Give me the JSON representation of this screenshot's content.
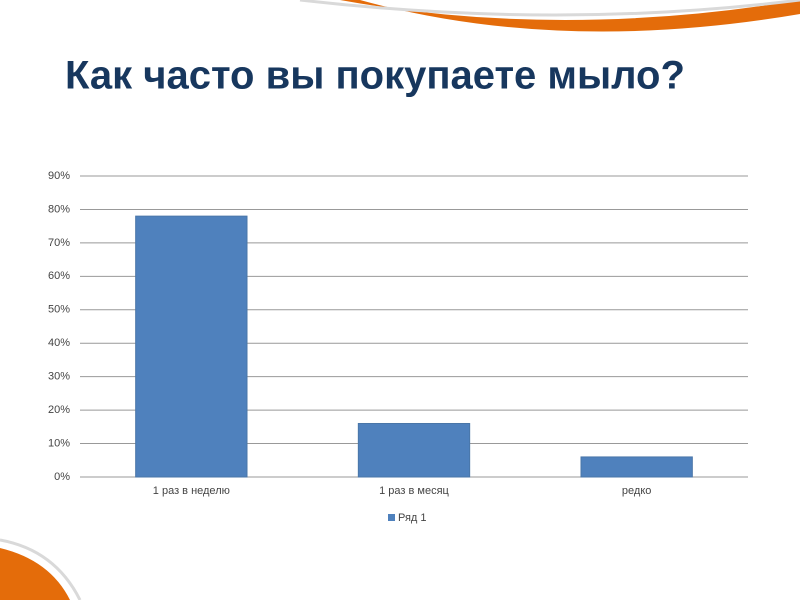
{
  "chart_data": {
    "type": "bar",
    "title": "Как часто вы покупаете мыло?",
    "categories": [
      "1 раз в неделю",
      "1 раз в месяц",
      "редко"
    ],
    "series": [
      {
        "name": "Ряд 1",
        "color": "#4f81bd",
        "values": [
          78,
          16,
          6
        ]
      }
    ],
    "ylim": [
      0,
      90
    ],
    "yticks": [
      {
        "value": 0,
        "label": "0%"
      },
      {
        "value": 10,
        "label": "10%"
      },
      {
        "value": 20,
        "label": "20%"
      },
      {
        "value": 30,
        "label": "30%"
      },
      {
        "value": 40,
        "label": "40%"
      },
      {
        "value": 50,
        "label": "50%"
      },
      {
        "value": 60,
        "label": "60%"
      },
      {
        "value": 70,
        "label": "70%"
      },
      {
        "value": 80,
        "label": "80%"
      },
      {
        "value": 90,
        "label": "90%"
      }
    ],
    "grid": true,
    "legend": "bottom"
  }
}
